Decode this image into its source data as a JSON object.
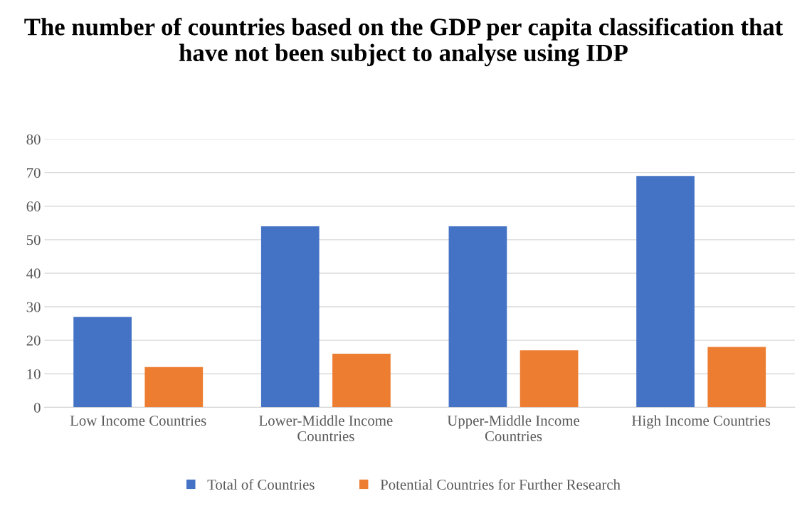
{
  "chart_data": {
    "type": "bar",
    "title": "The number of countries based on the GDP per capita classification that have not been subject to analyse using IDP",
    "categories": [
      "Low Income Countries",
      "Lower-Middle Income Countries",
      "Upper-Middle Income Countries",
      "High Income Countries"
    ],
    "series": [
      {
        "name": "Total of Countries",
        "color": "#4472c4",
        "values": [
          27,
          54,
          54,
          69
        ]
      },
      {
        "name": "Potential Countries for Further Research",
        "color": "#ed7d31",
        "values": [
          12,
          16,
          17,
          18
        ]
      }
    ],
    "ylim": [
      0,
      80
    ],
    "yticks": [
      0,
      10,
      20,
      30,
      40,
      50,
      60,
      70,
      80
    ],
    "grid": "y",
    "legend": "bottom"
  }
}
